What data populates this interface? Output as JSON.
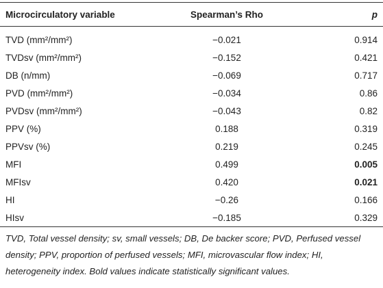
{
  "table": {
    "header": [
      "Microcirculatory variable",
      "Spearman’s Rho",
      "p"
    ],
    "rows": [
      {
        "variable": "TVD (mm²/mm²)",
        "rho": "−0.021",
        "p": "0.914"
      },
      {
        "variable": "TVDsv (mm²/mm²)",
        "rho": "−0.152",
        "p": "0.421"
      },
      {
        "variable": "DB (n/mm)",
        "rho": "−0.069",
        "p": "0.717"
      },
      {
        "variable": "PVD (mm²/mm²)",
        "rho": "−0.034",
        "p": "0.86"
      },
      {
        "variable": "PVDsv (mm²/mm²)",
        "rho": "−0.043",
        "p": "0.82"
      },
      {
        "variable": "PPV (%)",
        "rho": "0.188",
        "p": "0.319"
      },
      {
        "variable": "PPVsv (%)",
        "rho": "0.219",
        "p": "0.245"
      },
      {
        "variable": "MFI",
        "rho": "0.499",
        "p": "0.005",
        "p_bold": true
      },
      {
        "variable": "MFIsv",
        "rho": "0.420",
        "p": "0.021",
        "p_bold": true
      },
      {
        "variable": "HI",
        "rho": "−0.26",
        "p": "0.166"
      },
      {
        "variable": "HIsv",
        "rho": "−0.185",
        "p": "0.329"
      }
    ]
  },
  "footnote": "TVD, Total vessel density; sv, small vessels; DB, De backer score; PVD, Perfused vessel density; PPV, proportion of perfused vessels; MFI, microvascular flow index; HI, heterogeneity index. Bold values indicate statistically significant values."
}
